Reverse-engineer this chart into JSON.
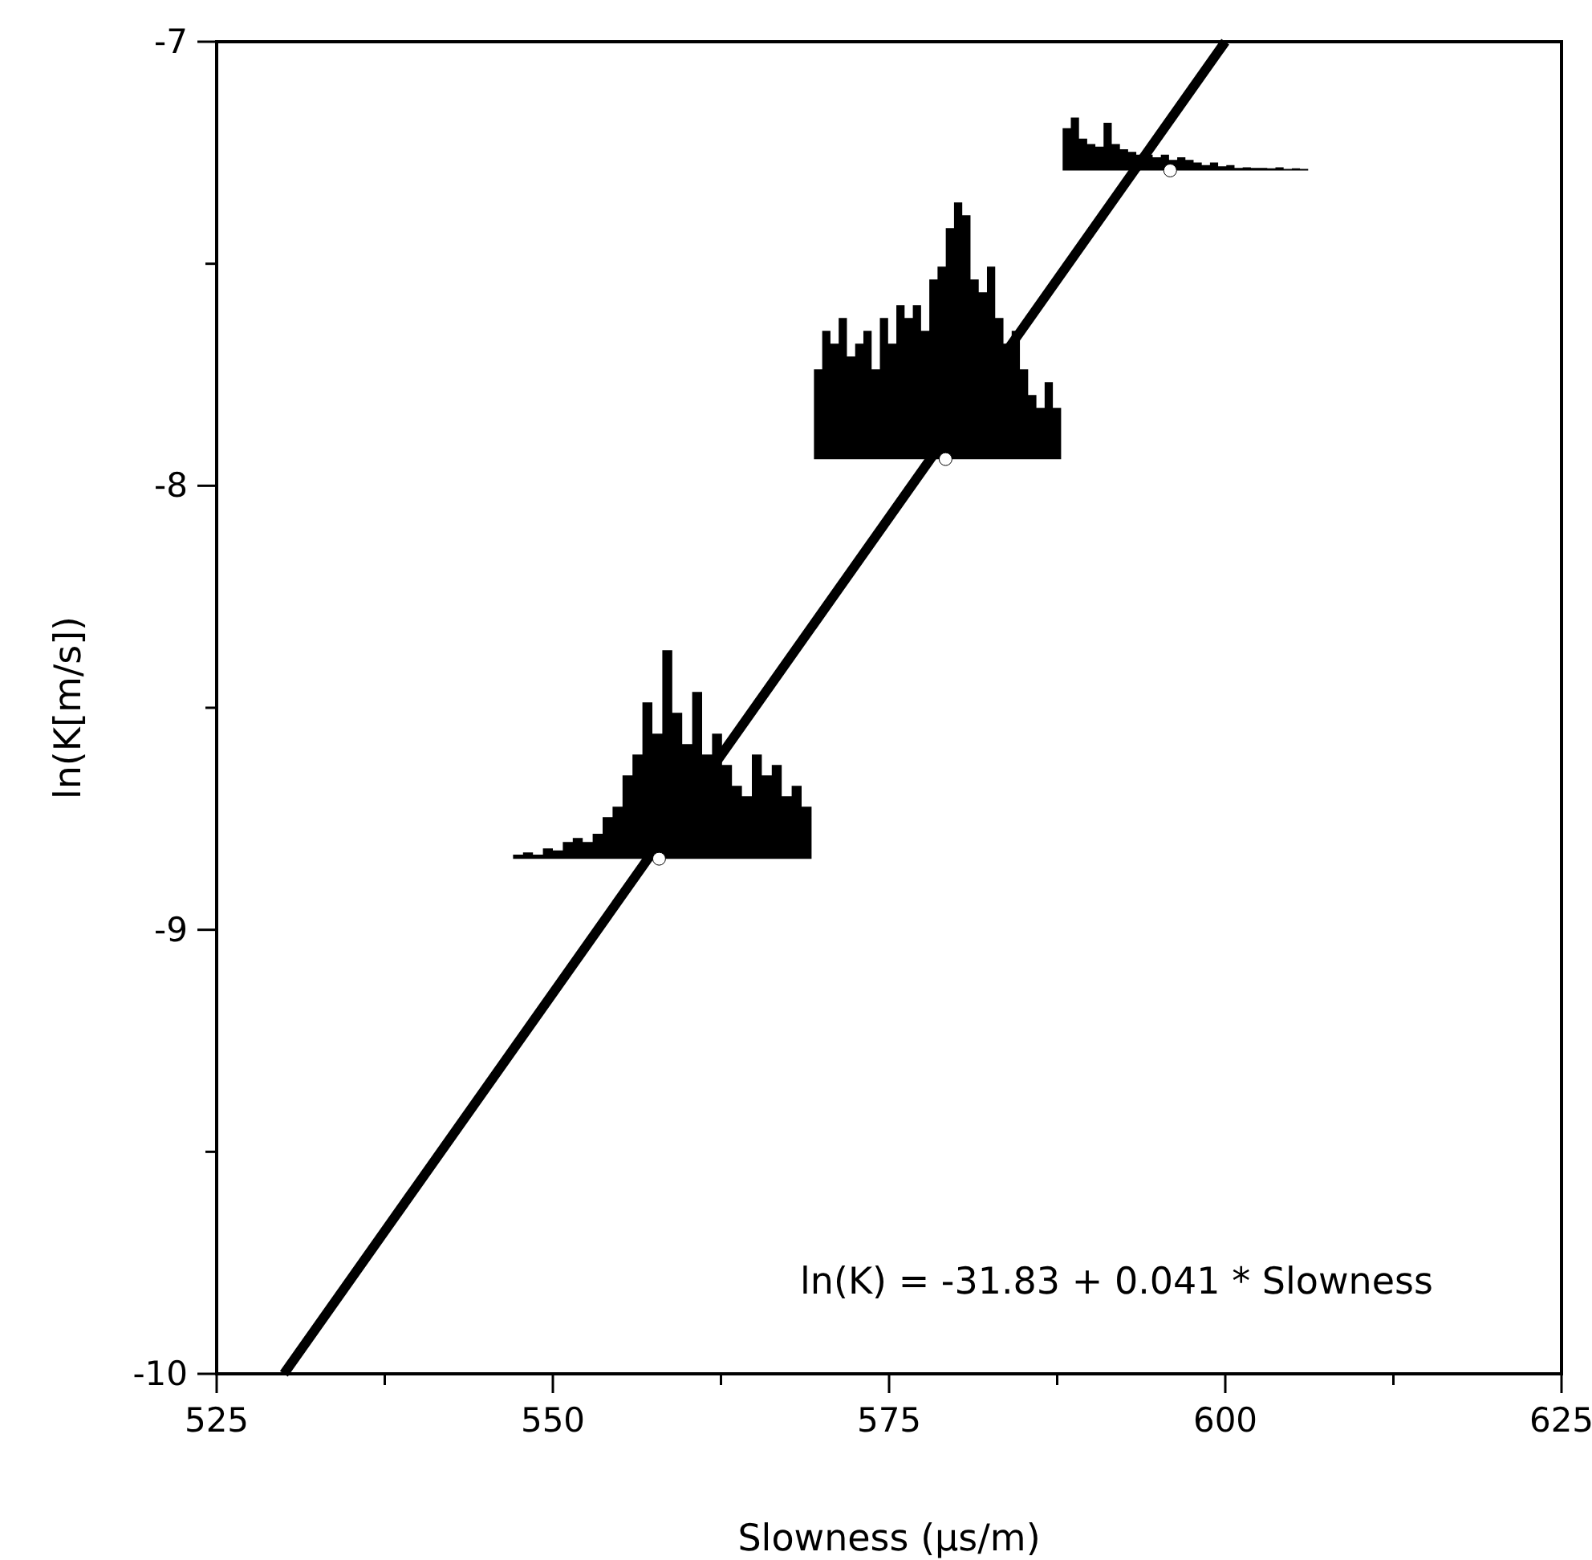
{
  "chart_data": {
    "type": "line",
    "xlabel": "Slowness (µs/m)",
    "ylabel": "ln(K[m/s])",
    "xlim": [
      525,
      625
    ],
    "ylim": [
      -10,
      -7
    ],
    "xticks": [
      525,
      {
        "value": 537.5,
        "label": null
      },
      550,
      {
        "value": 562.5,
        "label": null
      },
      575,
      {
        "value": 587.5,
        "label": null
      },
      600,
      {
        "value": 612.5,
        "label": null
      },
      625
    ],
    "yticks": [
      -10,
      {
        "value": -9.5,
        "label": null
      },
      -9,
      {
        "value": -8.5,
        "label": null
      },
      -8,
      {
        "value": -7.5,
        "label": null
      },
      -7
    ],
    "series": [
      {
        "color": "#000000",
        "x": [
          530,
          600
        ],
        "values": [
          -10,
          -7
        ]
      },
      {
        "type": "scatter",
        "color": "#ffffff",
        "marker": "circle",
        "x": [
          557.9,
          579.2,
          595.9
        ],
        "values": [
          -8.84,
          -7.94,
          -7.29
        ]
      }
    ],
    "annotations": [
      "ln(K) = -31.83 + 0.041 * Slowness"
    ],
    "grid": false
  }
}
